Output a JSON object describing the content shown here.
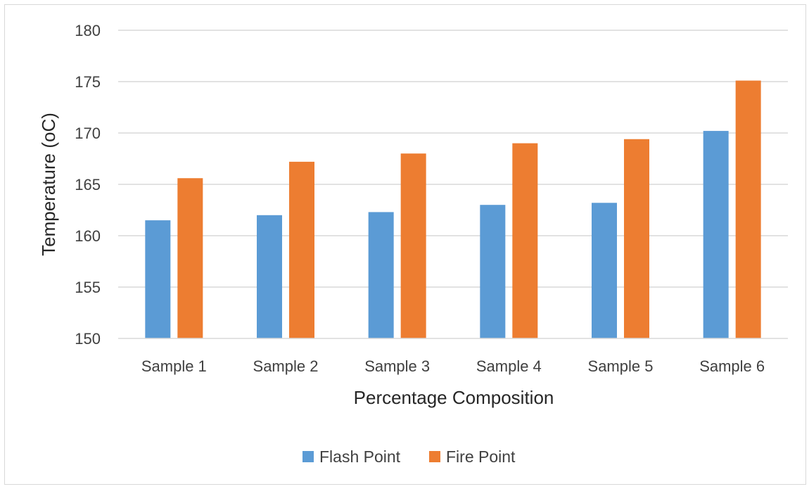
{
  "chart_data": {
    "type": "bar",
    "title": "",
    "xlabel": "Percentage Composition",
    "ylabel": "Temperature (oC)",
    "categories": [
      "Sample 1",
      "Sample 2",
      "Sample 3",
      "Sample 4",
      "Sample 5",
      "Sample 6"
    ],
    "series": [
      {
        "name": "Flash Point",
        "values": [
          161.5,
          162.0,
          162.3,
          163.0,
          163.2,
          170.2
        ],
        "color": "#5b9bd5"
      },
      {
        "name": "Fire Point",
        "values": [
          165.6,
          167.2,
          168.0,
          169.0,
          169.4,
          175.1
        ],
        "color": "#ed7d31"
      }
    ],
    "ylim": [
      150,
      180
    ],
    "yticks": [
      "150",
      "155",
      "160",
      "165",
      "170",
      "175",
      "180"
    ],
    "grid": true,
    "legend_position": "bottom"
  }
}
